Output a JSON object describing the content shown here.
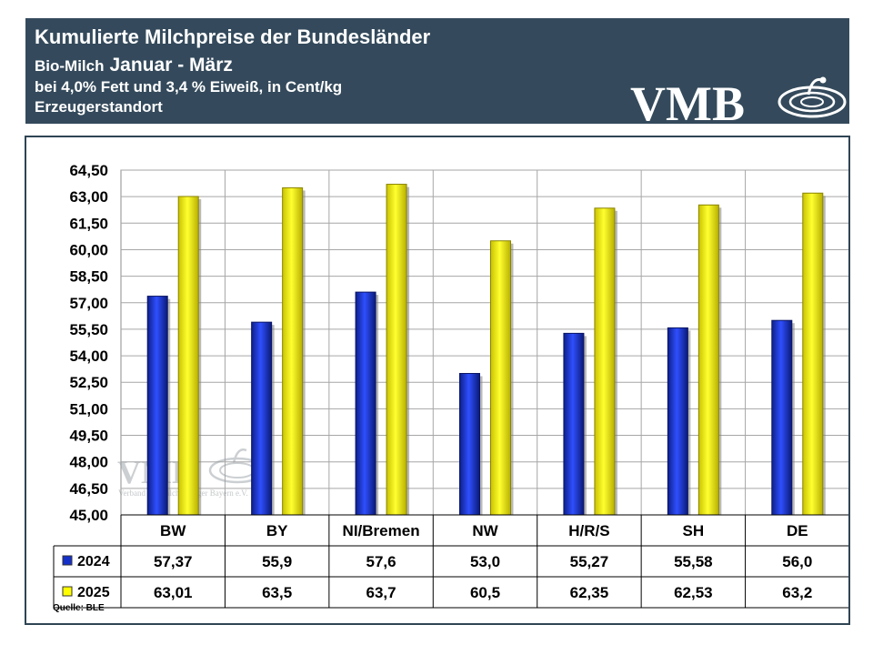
{
  "header": {
    "title": "Kumulierte Milchpreise der Bundesländer",
    "subtitle_prefix": "Bio-Milch",
    "subtitle_period": "Januar - März",
    "line3": "bei 4,0% Fett und 3,4 % Eiweiß, in Cent/kg",
    "line4": "Erzeugerstandort",
    "logo_text": "VMB"
  },
  "watermark": {
    "logo_text": "VMB",
    "caption": "Verband der Milcherzeuger Bayern e.V."
  },
  "source": "Quelle:  BLE",
  "colors": {
    "header_bg": "#344a5c",
    "series_2024": "#1530c8",
    "series_2025": "#ffff00"
  },
  "chart_data": {
    "type": "bar",
    "categories": [
      "BW",
      "BY",
      "NI/Bremen",
      "NW",
      "H/R/S",
      "SH",
      "DE"
    ],
    "series": [
      {
        "name": "2024",
        "values": [
          57.37,
          55.9,
          57.6,
          53.0,
          55.27,
          55.58,
          56.0
        ],
        "labels": [
          "57,37",
          "55,9",
          "57,6",
          "53,0",
          "55,27",
          "55,58",
          "56,0"
        ]
      },
      {
        "name": "2025",
        "values": [
          63.01,
          63.5,
          63.7,
          60.5,
          62.35,
          62.53,
          63.2
        ],
        "labels": [
          "63,01",
          "63,5",
          "63,7",
          "60,5",
          "62,35",
          "62,53",
          "63,2"
        ]
      }
    ],
    "ylim": [
      45.0,
      64.5
    ],
    "yticks": [
      "45,00",
      "46,50",
      "48,00",
      "49,50",
      "51,00",
      "52,50",
      "54,00",
      "55,50",
      "57,00",
      "58,50",
      "60,00",
      "61,50",
      "63,00",
      "64,50"
    ],
    "grid": true,
    "legend": "data-table"
  }
}
